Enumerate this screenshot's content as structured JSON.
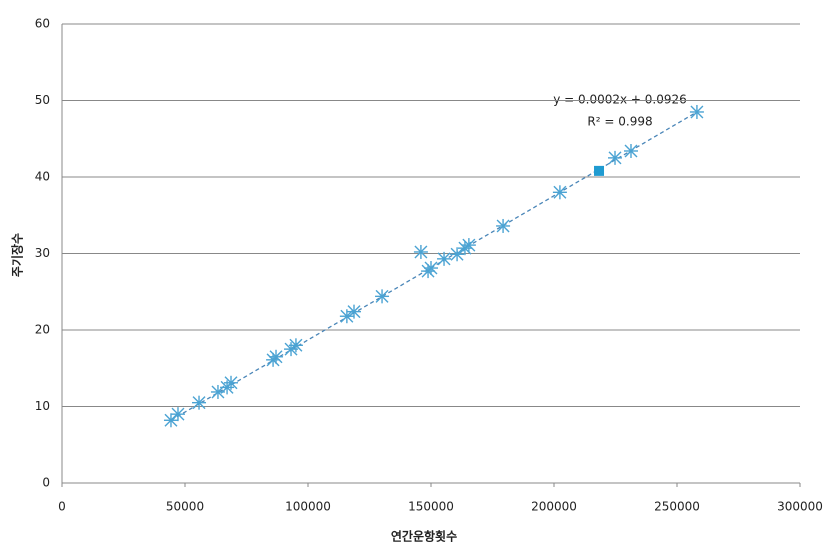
{
  "chart_data": {
    "type": "scatter",
    "xlabel": "연간운항횟수",
    "ylabel": "주기장수",
    "xlim": [
      0,
      300000
    ],
    "ylim": [
      0,
      60
    ],
    "xticks": [
      0,
      50000,
      100000,
      150000,
      200000,
      250000,
      300000
    ],
    "yticks": [
      0,
      10,
      20,
      30,
      40,
      50,
      60
    ],
    "grid": true,
    "series": [
      {
        "color": "#4ba3d3",
        "marker": "asterisk",
        "x": [
          44300,
          47150,
          55700,
          63400,
          67100,
          68700,
          85800,
          87000,
          93100,
          95100,
          115800,
          118700,
          130100,
          145900,
          148800,
          150000,
          155300,
          160600,
          163800,
          165400,
          179300,
          202400,
          224800,
          231300,
          258100
        ],
        "values": [
          8.2,
          9.0,
          10.5,
          11.9,
          12.5,
          13.1,
          16.1,
          16.5,
          17.5,
          18.0,
          21.8,
          22.4,
          24.4,
          30.2,
          27.7,
          28.1,
          29.3,
          29.9,
          30.7,
          31.1,
          33.6,
          38.0,
          42.5,
          43.4,
          48.5
        ]
      },
      {
        "color": "#1f9bd1",
        "marker": "square",
        "x": [
          218300
        ],
        "values": [
          40.8
        ]
      }
    ],
    "trendline": {
      "color": "#4a86b8",
      "x": [
        44300,
        258100
      ],
      "values": [
        8.2,
        48.5
      ]
    },
    "annotations": [
      "y = 0.0002x + 0.0926",
      "R² = 0.998"
    ]
  }
}
